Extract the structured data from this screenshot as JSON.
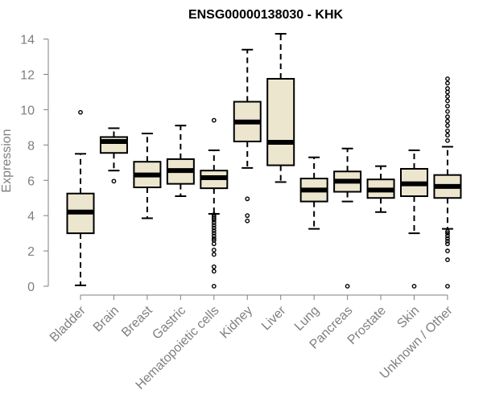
{
  "chart_data": {
    "type": "boxplot",
    "title": "ENSG00000138030 - KHK",
    "xlabel": "",
    "ylabel": "Expression",
    "ylim": [
      0,
      14.3
    ],
    "yticks": [
      0,
      2,
      4,
      6,
      8,
      10,
      12,
      14
    ],
    "box_fill": "#ede6cf",
    "categories": [
      "Bladder",
      "Brain",
      "Breast",
      "Gastric",
      "Hematopoietic cells",
      "Kidney",
      "Liver",
      "Lung",
      "Pancreas",
      "Prostate",
      "Skin",
      "Unknown / Other"
    ],
    "boxes": [
      {
        "min": 0.05,
        "q1": 3.0,
        "median": 4.2,
        "q3": 5.25,
        "max": 7.5,
        "outliers": [
          9.85
        ]
      },
      {
        "min": 6.55,
        "q1": 7.55,
        "median": 8.2,
        "q3": 8.45,
        "max": 8.95,
        "outliers": [
          5.95
        ]
      },
      {
        "min": 3.85,
        "q1": 5.6,
        "median": 6.3,
        "q3": 7.05,
        "max": 8.65,
        "outliers": []
      },
      {
        "min": 5.1,
        "q1": 5.8,
        "median": 6.55,
        "q3": 7.2,
        "max": 9.1,
        "outliers": []
      },
      {
        "min": 4.1,
        "q1": 5.55,
        "median": 6.15,
        "q3": 6.55,
        "max": 7.7,
        "outliers": [
          9.4,
          4.05,
          3.95,
          3.85,
          3.75,
          3.6,
          3.45,
          3.3,
          3.15,
          3.0,
          2.85,
          2.7,
          2.6,
          2.4,
          2.05,
          1.8,
          1.1,
          0.85,
          0.0
        ]
      },
      {
        "min": 6.7,
        "q1": 8.2,
        "median": 9.3,
        "q3": 10.45,
        "max": 13.4,
        "outliers": [
          4.95,
          4.0,
          3.7
        ]
      },
      {
        "min": 5.9,
        "q1": 6.85,
        "median": 8.15,
        "q3": 11.75,
        "max": 14.3,
        "outliers": []
      },
      {
        "min": 3.25,
        "q1": 4.8,
        "median": 5.45,
        "q3": 6.1,
        "max": 7.3,
        "outliers": []
      },
      {
        "min": 4.8,
        "q1": 5.35,
        "median": 5.95,
        "q3": 6.5,
        "max": 7.8,
        "outliers": [
          0.0
        ]
      },
      {
        "min": 4.2,
        "q1": 5.0,
        "median": 5.45,
        "q3": 6.05,
        "max": 6.8,
        "outliers": []
      },
      {
        "min": 3.0,
        "q1": 5.1,
        "median": 5.8,
        "q3": 6.65,
        "max": 7.7,
        "outliers": [
          0.0
        ]
      },
      {
        "min": 3.25,
        "q1": 5.0,
        "median": 5.65,
        "q3": 6.3,
        "max": 7.9,
        "outliers": [
          11.75,
          11.5,
          11.2,
          11.0,
          10.75,
          10.5,
          10.2,
          9.9,
          9.6,
          9.35,
          9.1,
          8.8,
          8.55,
          8.25,
          3.1,
          3.0,
          2.85,
          2.7,
          2.55,
          2.4,
          2.0,
          1.5,
          0.0
        ]
      }
    ]
  }
}
